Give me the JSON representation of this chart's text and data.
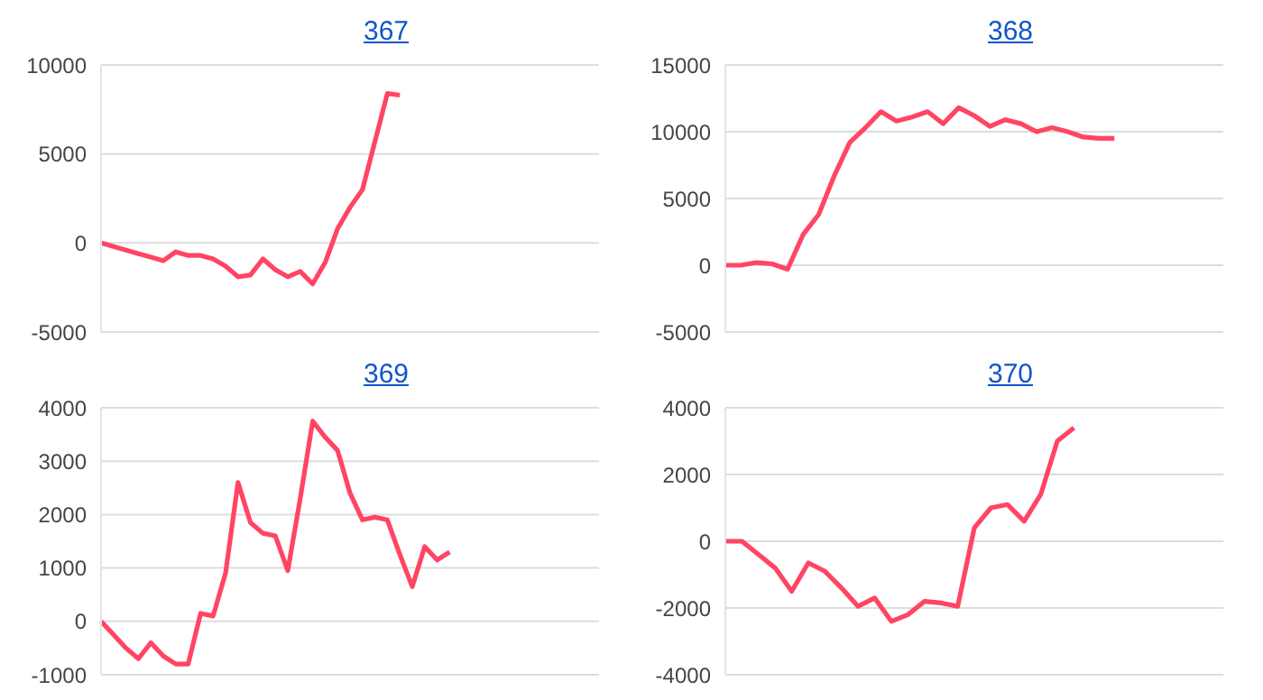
{
  "chart_data": [
    {
      "type": "line",
      "title": "367",
      "color": "#ff4563",
      "categories": [
        null,
        null,
        null,
        null,
        null,
        null,
        null,
        null,
        null,
        null,
        null,
        null,
        null,
        null,
        null,
        null,
        null,
        null,
        null,
        null,
        null,
        null,
        null,
        null,
        null,
        null,
        null,
        null,
        null,
        null,
        null,
        null,
        null,
        null,
        null,
        null,
        null,
        null,
        null,
        null,
        null
      ],
      "values": [
        0,
        -200,
        -400,
        -600,
        -800,
        -1000,
        -500,
        -700,
        -700,
        -900,
        -1300,
        -1900,
        -1800,
        -900,
        -1500,
        -1900,
        -1600,
        -2300,
        -1100,
        800,
        2000,
        3000,
        5700,
        8400,
        8300,
        null,
        null,
        null,
        null,
        null,
        null,
        null,
        null,
        null,
        null,
        null,
        null,
        null,
        null,
        null,
        null
      ],
      "ylim": [
        -5000,
        10000
      ],
      "yticks": [
        -5000,
        0,
        5000,
        10000
      ],
      "grid": "y",
      "tick_labels": "y",
      "marker": "none"
    },
    {
      "type": "line",
      "title": "368",
      "color": "#ff4563",
      "categories": [
        null,
        null,
        null,
        null,
        null,
        null,
        null,
        null,
        null,
        null,
        null,
        null,
        null,
        null,
        null,
        null,
        null,
        null,
        null,
        null,
        null,
        null,
        null,
        null,
        null,
        null,
        null,
        null,
        null,
        null,
        null,
        null,
        null
      ],
      "values": [
        0,
        0,
        200,
        100,
        -300,
        2300,
        3800,
        6700,
        9200,
        10300,
        11500,
        10800,
        11100,
        11500,
        10600,
        11800,
        11200,
        10400,
        10900,
        10600,
        10000,
        10300,
        10000,
        9600,
        9500,
        9500,
        null,
        null,
        null,
        null,
        null,
        null,
        null
      ],
      "ylim": [
        -5000,
        15000
      ],
      "yticks": [
        -5000,
        0,
        5000,
        10000,
        15000
      ],
      "grid": "y",
      "tick_labels": "y",
      "marker": "none"
    },
    {
      "type": "line",
      "title": "369",
      "color": "#ff4563",
      "categories": [
        null,
        null,
        null,
        null,
        null,
        null,
        null,
        null,
        null,
        null,
        null,
        null,
        null,
        null,
        null,
        null,
        null,
        null,
        null,
        null,
        null,
        null,
        null,
        null,
        null,
        null,
        null,
        null,
        null,
        null,
        null,
        null,
        null,
        null,
        null,
        null,
        null,
        null,
        null,
        null,
        null
      ],
      "values": [
        0,
        -250,
        -500,
        -700,
        -400,
        -650,
        -800,
        -800,
        150,
        100,
        900,
        2600,
        1850,
        1650,
        1600,
        950,
        2300,
        3750,
        3450,
        3200,
        2400,
        1900,
        1950,
        1900,
        1250,
        650,
        1400,
        1150,
        1300,
        null,
        null,
        null,
        null,
        null,
        null,
        null,
        null,
        null,
        null,
        null,
        null
      ],
      "ylim": [
        -1000,
        4000
      ],
      "yticks": [
        -1000,
        0,
        1000,
        2000,
        3000,
        4000
      ],
      "grid": "y",
      "tick_labels": "y",
      "marker": "none"
    },
    {
      "type": "line",
      "title": "370",
      "color": "#ff4563",
      "categories": [
        null,
        null,
        null,
        null,
        null,
        null,
        null,
        null,
        null,
        null,
        null,
        null,
        null,
        null,
        null,
        null,
        null,
        null,
        null,
        null,
        null,
        null,
        null,
        null,
        null,
        null,
        null,
        null,
        null,
        null,
        null
      ],
      "values": [
        0,
        0,
        -400,
        -800,
        -1500,
        -650,
        -900,
        -1400,
        -1950,
        -1700,
        -2400,
        -2200,
        -1800,
        -1850,
        -1950,
        400,
        1000,
        1100,
        600,
        1400,
        3000,
        3400,
        null,
        null,
        null,
        null,
        null,
        null,
        null,
        null,
        null
      ],
      "ylim": [
        -4000,
        4000
      ],
      "yticks": [
        -4000,
        -2000,
        0,
        2000,
        4000
      ],
      "grid": "y",
      "tick_labels": "y",
      "marker": "none"
    }
  ]
}
